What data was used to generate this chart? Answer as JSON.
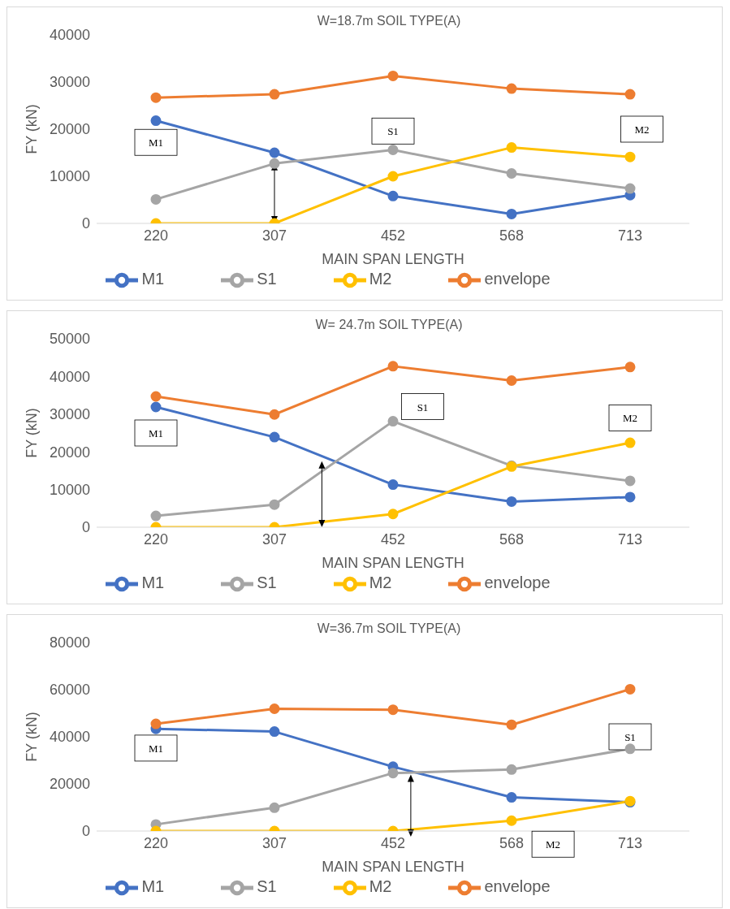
{
  "chart_data": [
    {
      "type": "line",
      "title": "W=18.7m SOIL TYPE(A)",
      "xlabel": "MAIN SPAN LENGTH",
      "ylabel": "FY (kN)",
      "categories": [
        "220",
        "307",
        "452",
        "568",
        "713"
      ],
      "ylim": [
        0,
        40000
      ],
      "yticks": [
        0,
        10000,
        20000,
        30000,
        40000
      ],
      "legend": "bottom",
      "marker": "circle",
      "series": [
        {
          "name": "M1",
          "color": "#4472c4",
          "values": [
            21800,
            15000,
            5800,
            2000,
            6000
          ]
        },
        {
          "name": "S1",
          "color": "#a5a5a5",
          "values": [
            5100,
            12700,
            15600,
            10600,
            7400
          ]
        },
        {
          "name": "M2",
          "color": "#ffc000",
          "values": [
            0,
            0,
            10000,
            16100,
            14100
          ]
        },
        {
          "name": "envelope",
          "color": "#ed7d31",
          "values": [
            26700,
            27400,
            31300,
            28600,
            27400
          ]
        }
      ],
      "annotations": [
        "M1",
        "S1",
        "M2"
      ]
    },
    {
      "type": "line",
      "title": "W= 24.7m SOIL TYPE(A)",
      "xlabel": "MAIN SPAN LENGTH",
      "ylabel": "FY (kN)",
      "categories": [
        "220",
        "307",
        "452",
        "568",
        "713"
      ],
      "ylim": [
        0,
        50000
      ],
      "yticks": [
        0,
        10000,
        20000,
        30000,
        40000,
        50000
      ],
      "legend": "bottom",
      "marker": "circle",
      "series": [
        {
          "name": "M1",
          "color": "#4472c4",
          "values": [
            31900,
            23900,
            11300,
            6800,
            8000
          ]
        },
        {
          "name": "S1",
          "color": "#a5a5a5",
          "values": [
            3000,
            6000,
            28100,
            16300,
            12300
          ]
        },
        {
          "name": "M2",
          "color": "#ffc000",
          "values": [
            0,
            0,
            3500,
            16100,
            22400
          ]
        },
        {
          "name": "envelope",
          "color": "#ed7d31",
          "values": [
            34700,
            29900,
            42700,
            38900,
            42500
          ]
        }
      ],
      "annotations": [
        "M1",
        "S1",
        "M2"
      ]
    },
    {
      "type": "line",
      "title": "W=36.7m SOIL TYPE(A)",
      "xlabel": "MAIN SPAN LENGTH",
      "ylabel": "FY (kN)",
      "categories": [
        "220",
        "307",
        "452",
        "568",
        "713"
      ],
      "ylim": [
        0,
        80000
      ],
      "yticks": [
        0,
        20000,
        40000,
        60000,
        80000
      ],
      "legend": "bottom",
      "marker": "circle",
      "series": [
        {
          "name": "M1",
          "color": "#4472c4",
          "values": [
            43400,
            42200,
            27300,
            14300,
            12200
          ]
        },
        {
          "name": "S1",
          "color": "#a5a5a5",
          "values": [
            2800,
            9900,
            24600,
            26100,
            34900
          ]
        },
        {
          "name": "M2",
          "color": "#ffc000",
          "values": [
            0,
            0,
            0,
            4400,
            12700
          ]
        },
        {
          "name": "envelope",
          "color": "#ed7d31",
          "values": [
            45500,
            51900,
            51500,
            45100,
            60200
          ]
        }
      ],
      "annotations": [
        "M1",
        "S1",
        "M2"
      ]
    }
  ]
}
